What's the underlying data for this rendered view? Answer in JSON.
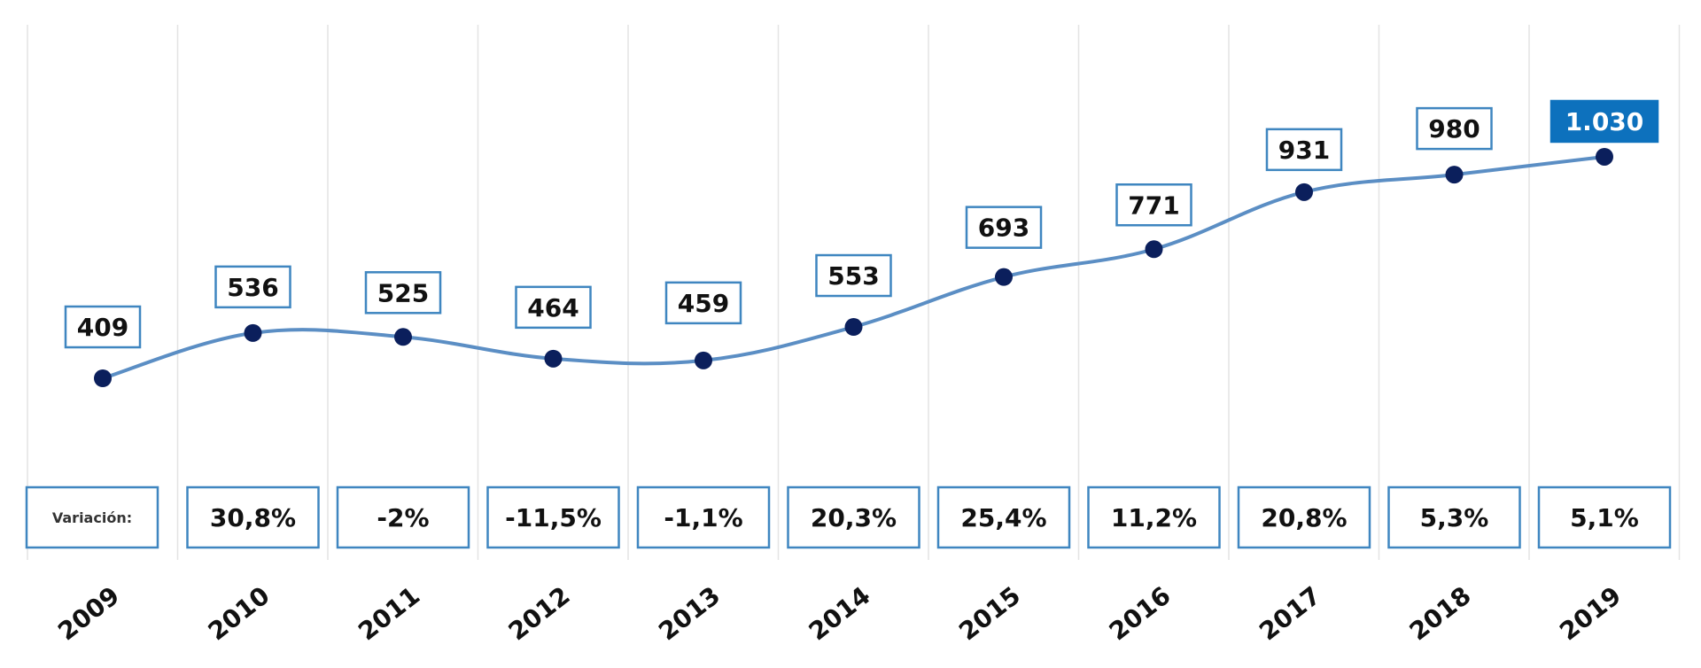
{
  "colors": {
    "line": "#5b8ec4",
    "marker": "#0b1f5c",
    "box_border": "#3f86c0",
    "highlight_fill": "#0d71bd",
    "highlight_text": "#ffffff",
    "gridline": "#e4e4e4",
    "text": "#111111"
  },
  "variation_label": "Variación:",
  "chart_data": {
    "type": "line",
    "x": [
      "2009",
      "2010",
      "2011",
      "2012",
      "2013",
      "2014",
      "2015",
      "2016",
      "2017",
      "2018",
      "2019"
    ],
    "series": [
      {
        "values": [
          409,
          536,
          525,
          464,
          459,
          553,
          693,
          771,
          931,
          980,
          1030
        ],
        "value_labels": [
          "409",
          "536",
          "525",
          "464",
          "459",
          "553",
          "693",
          "771",
          "931",
          "980",
          "1.030"
        ]
      }
    ],
    "variation": [
      "",
      "30,8%",
      "-2%",
      "-11,5%",
      "-1,1%",
      "20,3%",
      "25,4%",
      "11,2%",
      "20,8%",
      "5,3%",
      "5,1%"
    ],
    "highlight_last": true,
    "grid": true,
    "title": "",
    "xlabel": "",
    "ylabel": ""
  }
}
